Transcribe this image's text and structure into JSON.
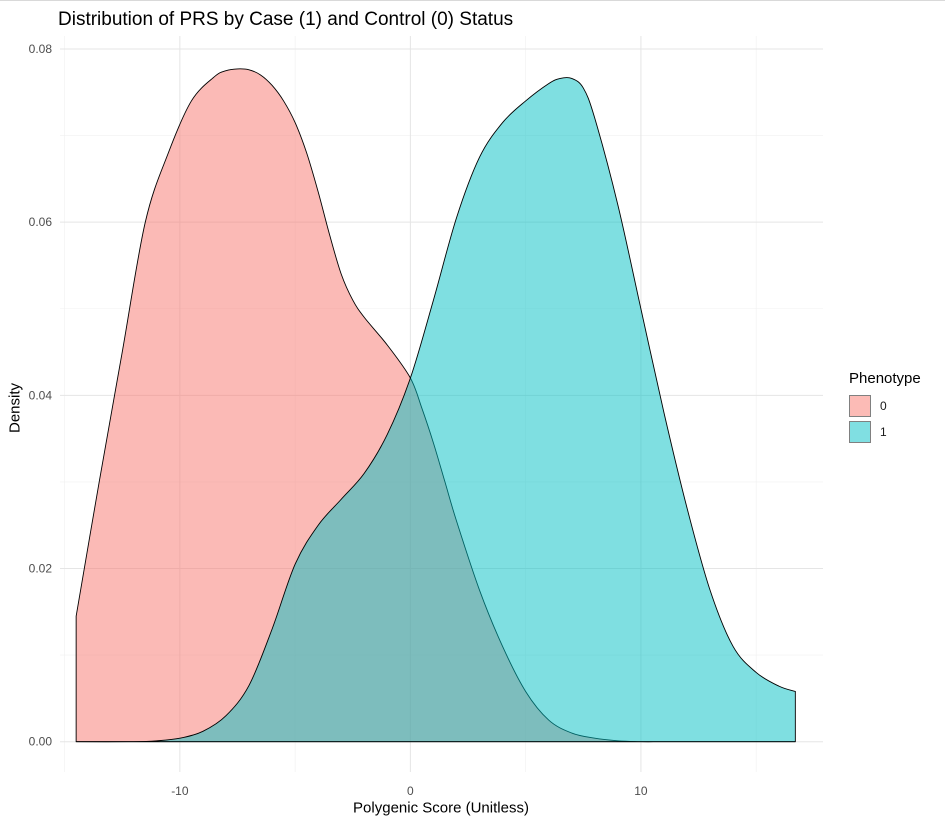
{
  "chart_data": {
    "type": "area",
    "title": "Distribution of PRS by Case (1) and Control (0) Status",
    "xlabel": "Polygenic Score (Unitless)",
    "ylabel": "Density",
    "xlim": [
      -15.2,
      17.9
    ],
    "ylim": [
      -0.0035,
      0.0815
    ],
    "x_ticks": [
      -10,
      0,
      10
    ],
    "x_tick_labels": [
      "-10",
      "0",
      "10"
    ],
    "y_ticks": [
      0.0,
      0.02,
      0.04,
      0.06,
      0.08
    ],
    "y_tick_labels": [
      "0.00",
      "0.02",
      "0.04",
      "0.06",
      "0.08"
    ],
    "grid": true,
    "legend": {
      "title": "Phenotype",
      "position": "right"
    },
    "series": [
      {
        "name": "0",
        "fill": "#F8766D",
        "opacity": 0.5,
        "x": [
          -14.5,
          -13.5,
          -12.5,
          -11.5,
          -10.5,
          -9.5,
          -8.5,
          -8.0,
          -7.5,
          -7.0,
          -6.5,
          -6.0,
          -5.5,
          -5.0,
          -4.5,
          -4.0,
          -3.5,
          -3.0,
          -2.5,
          -2.0,
          -1.0,
          0.0,
          0.5,
          1.0,
          1.5,
          2.0,
          3.0,
          4.0,
          5.0,
          6.0,
          7.0,
          8.0,
          9.0,
          10.0,
          11.0,
          13.0,
          15.0,
          16.7
        ],
        "y": [
          0.0145,
          0.03,
          0.045,
          0.06,
          0.068,
          0.074,
          0.0768,
          0.0775,
          0.0777,
          0.0776,
          0.077,
          0.0758,
          0.074,
          0.0715,
          0.068,
          0.0635,
          0.0585,
          0.054,
          0.051,
          0.049,
          0.0458,
          0.042,
          0.0385,
          0.0345,
          0.03,
          0.0255,
          0.0175,
          0.011,
          0.0058,
          0.0025,
          0.001,
          0.0004,
          0.0001,
          0.0,
          0.0,
          0.0,
          0.0,
          0.0
        ]
      },
      {
        "name": "1",
        "fill": "#00BFC4",
        "opacity": 0.5,
        "x": [
          -14.5,
          -12.0,
          -11.0,
          -10.0,
          -9.0,
          -8.0,
          -7.0,
          -6.0,
          -5.0,
          -4.0,
          -3.0,
          -2.0,
          -1.0,
          0.0,
          1.0,
          2.0,
          3.0,
          4.0,
          5.0,
          6.0,
          6.5,
          7.0,
          7.5,
          8.0,
          9.0,
          10.0,
          11.0,
          12.0,
          13.0,
          14.0,
          15.0,
          16.0,
          16.7
        ],
        "y": [
          0.0,
          0.0,
          0.0001,
          0.0004,
          0.0012,
          0.003,
          0.0065,
          0.013,
          0.0205,
          0.025,
          0.028,
          0.031,
          0.0355,
          0.042,
          0.051,
          0.0605,
          0.0675,
          0.0715,
          0.074,
          0.076,
          0.0766,
          0.0766,
          0.0755,
          0.072,
          0.062,
          0.05,
          0.038,
          0.027,
          0.0175,
          0.011,
          0.008,
          0.0064,
          0.0058
        ]
      }
    ]
  }
}
